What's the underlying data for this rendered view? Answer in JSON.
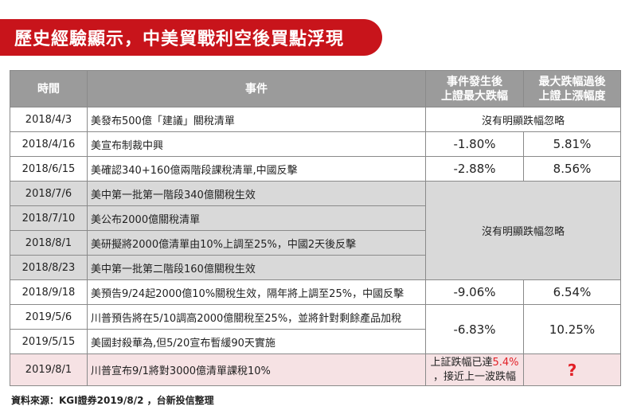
{
  "title": "歷史經驗顯示，中美貿戰利空後買點浮現",
  "headers": {
    "date": "時間",
    "event": "事件",
    "drop_line1": "事件發生後",
    "drop_line2": "上證最大跌幅",
    "rebound_line1": "最大跌幅過後",
    "rebound_line2": "上證上漲幅度"
  },
  "rows": [
    {
      "date": "2018/4/3",
      "event": "美發布500億「建議」關稅清單",
      "note": "沒有明顯跌幅忽略"
    },
    {
      "date": "2018/4/16",
      "event": "美宣布制裁中興",
      "drop": "-1.80%",
      "rebound": "5.81%"
    },
    {
      "date": "2018/6/15",
      "event": "美確認340+160億兩階段課稅清單,中國反擊",
      "drop": "-2.88%",
      "rebound": "8.56%"
    },
    {
      "date": "2018/7/6",
      "event": "美中第一批第一階段340億關稅生效"
    },
    {
      "date": "2018/7/10",
      "event": "美公布2000億關稅清單"
    },
    {
      "date": "2018/8/1",
      "event": "美研擬將2000億清單由10%上調至25%，中國2天後反擊"
    },
    {
      "date": "2018/8/23",
      "event": "美中第一批第二階段160億關稅生效"
    },
    {
      "date": "2018/9/18",
      "event": "美預告9/24起2000億10%關稅生效，隔年將上調至25%，中國反擊",
      "drop": "-9.06%",
      "rebound": "6.54%"
    },
    {
      "date": "2019/5/6",
      "event": "川普預告將在5/10調高2000億關稅至25%，並將針對剩餘產品加稅"
    },
    {
      "date": "2019/5/15",
      "event": "美國封殺華為,但5/20宣布暫緩90天實施"
    },
    {
      "date": "2019/8/1",
      "event": "川普宣布9/1將對3000億清單課稅10%"
    }
  ],
  "gray_note": "沒有明顯跌幅忽略",
  "may_drop": "-6.83%",
  "may_rebound": "10.25%",
  "last": {
    "note_prefix": "上証跌幅已達",
    "note_value": "5.4%",
    "note_suffix": "，接近上一波跌幅",
    "rebound": "?"
  },
  "source": "資料來源：KGI證券2019/8/2 ，台新投信整理"
}
